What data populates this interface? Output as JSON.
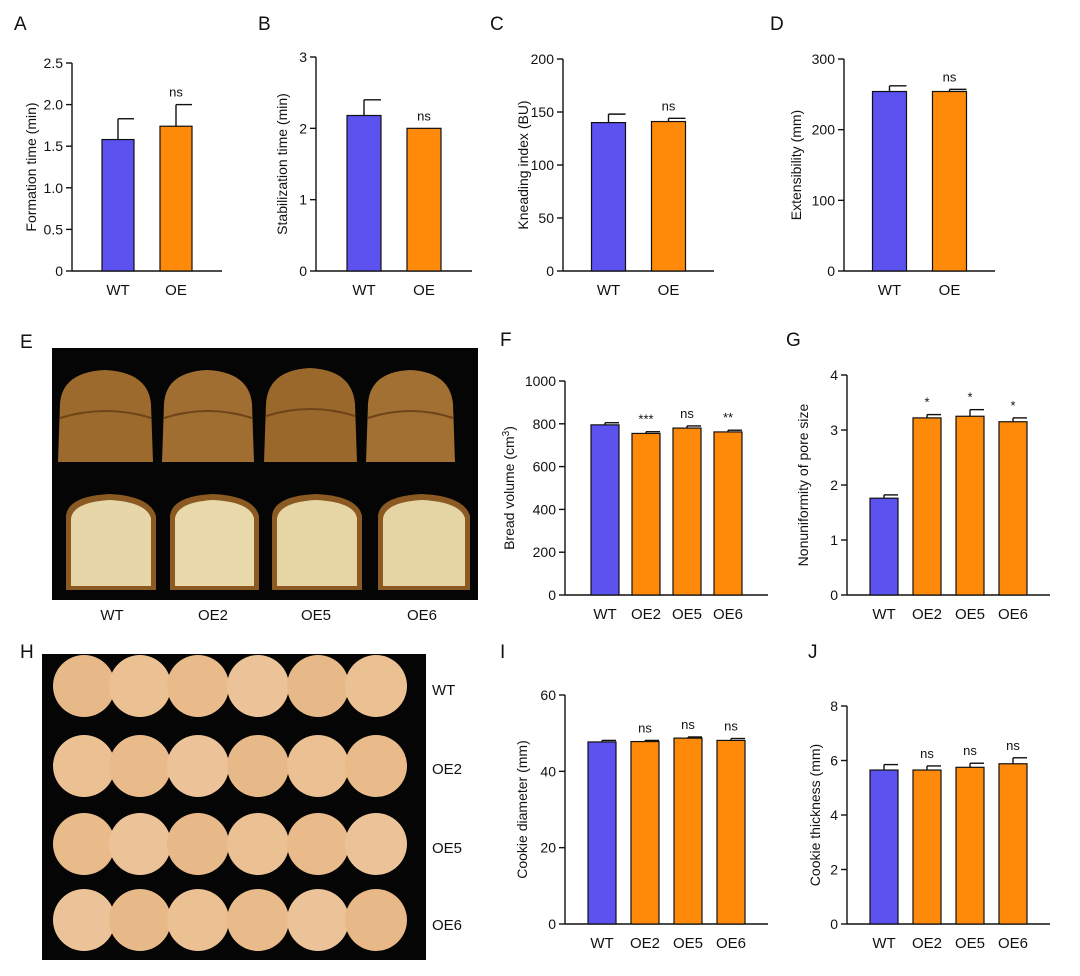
{
  "colors": {
    "wt": "#5b52f0",
    "oe": "#ff8a0a",
    "axis": "#111111",
    "photo_bg": "#050505"
  },
  "photos": {
    "E": {
      "letter": "E",
      "labels": [
        "WT",
        "OE2",
        "OE5",
        "OE6"
      ]
    },
    "H": {
      "letter": "H",
      "labels": [
        "WT",
        "OE2",
        "OE5",
        "OE6"
      ]
    }
  },
  "chart_data": [
    {
      "id": "A",
      "letter": "A",
      "type": "bar",
      "categories": [
        "WT",
        "OE"
      ],
      "values": [
        1.58,
        1.74
      ],
      "errors": [
        0.25,
        0.26
      ],
      "annotations": [
        "",
        "ns"
      ],
      "ylabel": "Formation time (min)",
      "ylim": [
        0,
        2.5
      ],
      "yticks": [
        "0",
        "0.5",
        "1.0",
        "1.5",
        "2.0",
        "2.5"
      ],
      "ytick_values": [
        0,
        0.5,
        1.0,
        1.5,
        2.0,
        2.5
      ]
    },
    {
      "id": "B",
      "letter": "B",
      "type": "bar",
      "categories": [
        "WT",
        "OE"
      ],
      "values": [
        2.18,
        2.0
      ],
      "errors": [
        0.22,
        0
      ],
      "annotations": [
        "",
        "ns"
      ],
      "ylabel": "Stabilization time (min)",
      "ylim": [
        0,
        3
      ],
      "yticks": [
        "0",
        "1",
        "2",
        "3"
      ],
      "ytick_values": [
        0,
        1,
        2,
        3
      ]
    },
    {
      "id": "C",
      "letter": "C",
      "type": "bar",
      "categories": [
        "WT",
        "OE"
      ],
      "values": [
        140,
        141
      ],
      "errors": [
        8,
        3
      ],
      "annotations": [
        "",
        "ns"
      ],
      "ylabel": "Kneading index (BU)",
      "ylim": [
        0,
        200
      ],
      "yticks": [
        "0",
        "50",
        "100",
        "150",
        "200"
      ],
      "ytick_values": [
        0,
        50,
        100,
        150,
        200
      ]
    },
    {
      "id": "D",
      "letter": "D",
      "type": "bar",
      "categories": [
        "WT",
        "OE"
      ],
      "values": [
        254,
        254
      ],
      "errors": [
        8,
        3
      ],
      "annotations": [
        "",
        "ns"
      ],
      "ylabel": "Extensibility (mm)",
      "ylim": [
        0,
        300
      ],
      "yticks": [
        "0",
        "100",
        "200",
        "300"
      ],
      "ytick_values": [
        0,
        100,
        200,
        300
      ]
    },
    {
      "id": "F",
      "letter": "F",
      "type": "bar",
      "categories": [
        "WT",
        "OE2",
        "OE5",
        "OE6"
      ],
      "values": [
        795,
        755,
        780,
        762
      ],
      "errors": [
        10,
        8,
        10,
        8
      ],
      "annotations": [
        "",
        "***",
        "ns",
        "**"
      ],
      "ylabel": "Bread volume (cm",
      "ylabel_sup": "3",
      "ylabel_end": ")",
      "ylim": [
        0,
        1000
      ],
      "yticks": [
        "0",
        "200",
        "400",
        "600",
        "800",
        "1000"
      ],
      "ytick_values": [
        0,
        200,
        400,
        600,
        800,
        1000
      ]
    },
    {
      "id": "G",
      "letter": "G",
      "type": "bar",
      "categories": [
        "WT",
        "OE2",
        "OE5",
        "OE6"
      ],
      "values": [
        1.76,
        3.22,
        3.25,
        3.15
      ],
      "errors": [
        0.06,
        0.06,
        0.12,
        0.07
      ],
      "annotations": [
        "",
        "*",
        "*",
        "*"
      ],
      "ylabel": "Nonuniformity of pore size",
      "ylim": [
        0,
        4
      ],
      "yticks": [
        "0",
        "1",
        "2",
        "3",
        "4"
      ],
      "ytick_values": [
        0,
        1,
        2,
        3,
        4
      ]
    },
    {
      "id": "I",
      "letter": "I",
      "type": "bar",
      "categories": [
        "WT",
        "OE2",
        "OE5",
        "OE6"
      ],
      "values": [
        47.7,
        47.8,
        48.7,
        48.1
      ],
      "errors": [
        0.4,
        0.3,
        0.3,
        0.5
      ],
      "annotations": [
        "",
        "ns",
        "ns",
        "ns"
      ],
      "ylabel": "Cookie diameter (mm)",
      "ylim": [
        0,
        60
      ],
      "yticks": [
        "0",
        "20",
        "40",
        "60"
      ],
      "ytick_values": [
        0,
        20,
        40,
        60
      ]
    },
    {
      "id": "J",
      "letter": "J",
      "type": "bar",
      "categories": [
        "WT",
        "OE2",
        "OE5",
        "OE6"
      ],
      "values": [
        5.65,
        5.65,
        5.75,
        5.88
      ],
      "errors": [
        0.2,
        0.15,
        0.15,
        0.22
      ],
      "annotations": [
        "",
        "ns",
        "ns",
        "ns"
      ],
      "ylabel": "Cookie thickness (mm)",
      "ylim": [
        0,
        8
      ],
      "yticks": [
        "0",
        "2",
        "4",
        "6",
        "8"
      ],
      "ytick_values": [
        0,
        2,
        4,
        6,
        8
      ]
    }
  ]
}
